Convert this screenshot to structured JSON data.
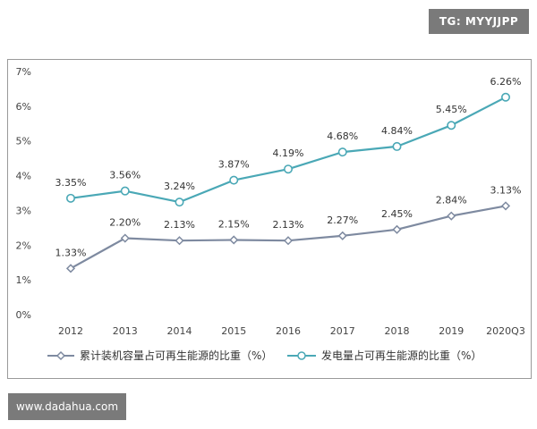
{
  "watermark": {
    "tg_label": "TG: MYYJJPP",
    "site_url": "www.dadahua.com"
  },
  "chart_data": {
    "type": "line",
    "title": "",
    "xlabel": "",
    "ylabel": "",
    "x": [
      "2012",
      "2013",
      "2014",
      "2015",
      "2016",
      "2017",
      "2018",
      "2019",
      "2020Q3"
    ],
    "ylim": [
      0,
      7
    ],
    "yticks": [
      0,
      1,
      2,
      3,
      4,
      5,
      6,
      7
    ],
    "ytick_labels": [
      "0%",
      "1%",
      "2%",
      "3%",
      "4%",
      "5%",
      "6%",
      "7%"
    ],
    "grid": false,
    "legend_position": "bottom",
    "series": [
      {
        "name": "累计装机容量占可再生能源的比重（%）",
        "color": "#7e8aa0",
        "marker": "diamond",
        "values": [
          1.33,
          2.2,
          2.13,
          2.15,
          2.13,
          2.27,
          2.45,
          2.84,
          3.13
        ],
        "labels": [
          "1.33%",
          "2.20%",
          "2.13%",
          "2.15%",
          "2.13%",
          "2.27%",
          "2.45%",
          "2.84%",
          "3.13%"
        ]
      },
      {
        "name": "发电量占可再生能源的比重（%）",
        "color": "#4aa8b6",
        "marker": "circle",
        "values": [
          3.35,
          3.56,
          3.24,
          3.87,
          4.19,
          4.68,
          4.84,
          5.45,
          6.26
        ],
        "labels": [
          "3.35%",
          "3.56%",
          "3.24%",
          "3.87%",
          "4.19%",
          "4.68%",
          "4.84%",
          "5.45%",
          "6.26%"
        ]
      }
    ]
  }
}
